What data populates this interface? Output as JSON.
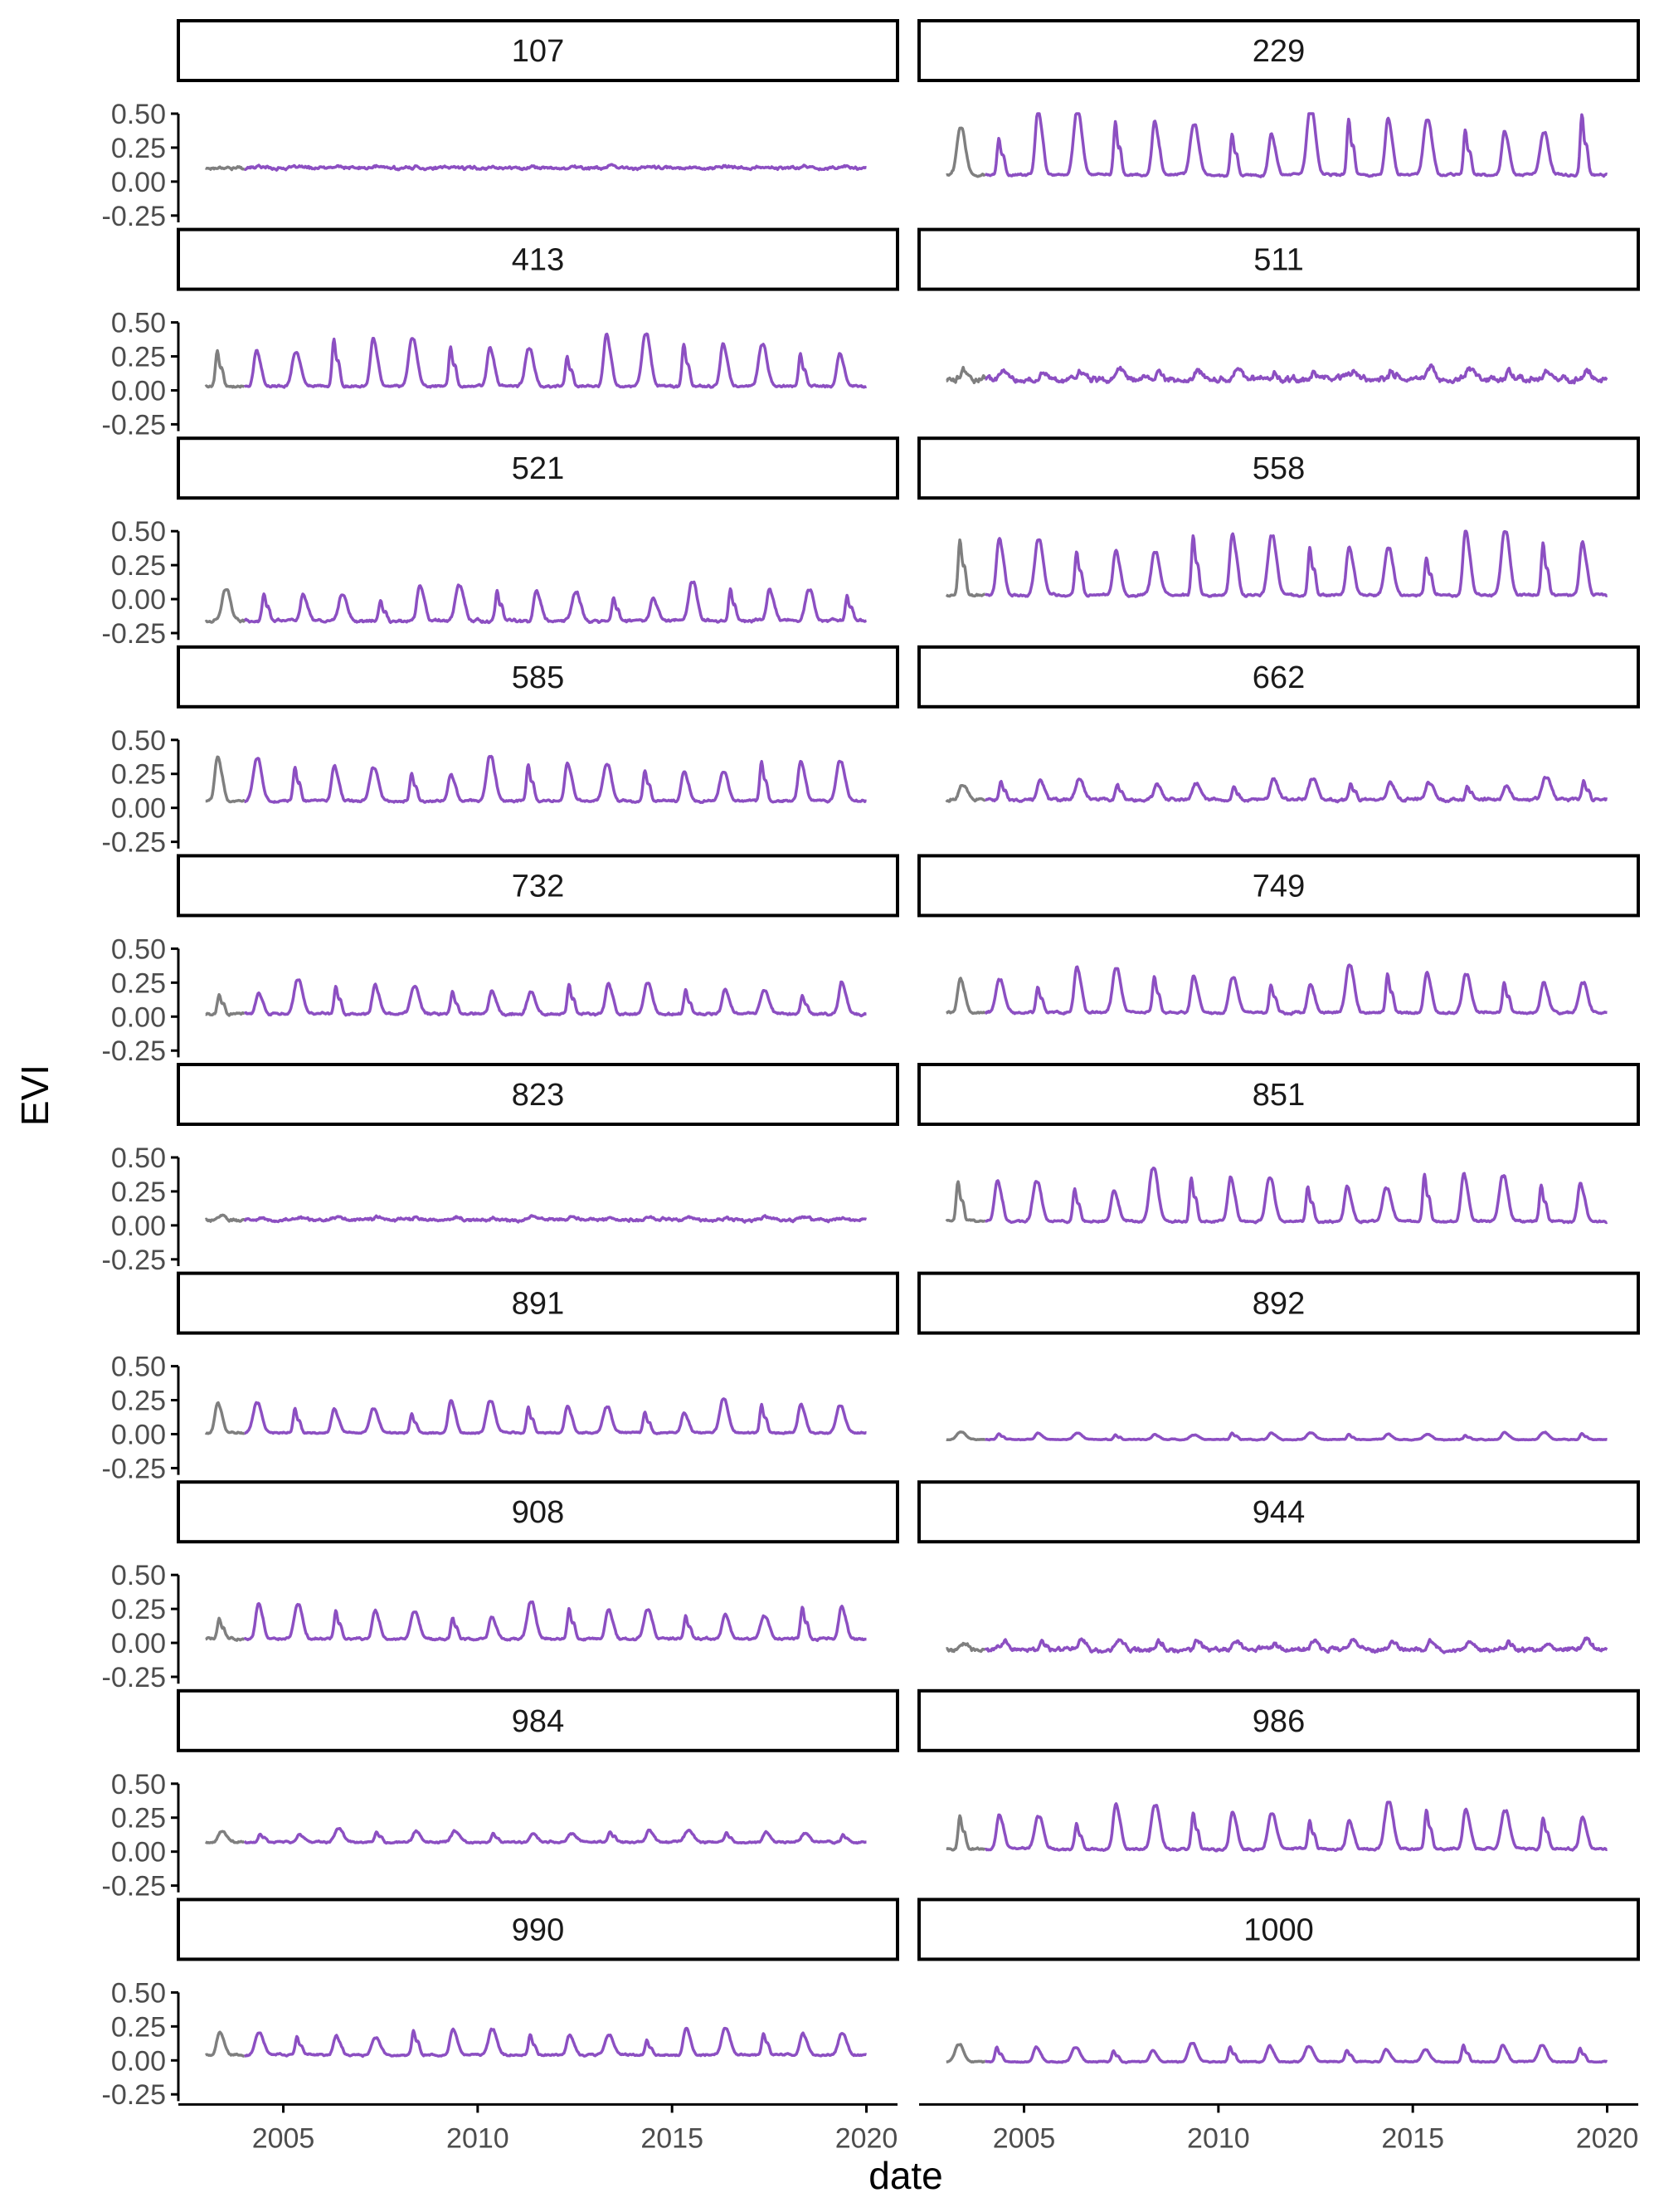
{
  "chart_data": {
    "type": "line",
    "layout": "facet_wrap",
    "ncol": 2,
    "xlabel": "date",
    "ylabel": "EVI",
    "x_ticks": [
      "2005",
      "2010",
      "2015",
      "2020"
    ],
    "xlim": [
      2002.3,
      2020.8
    ],
    "y_ticks": [
      0.5,
      0.25,
      0.0,
      -0.25
    ],
    "y_tick_labels": [
      "0.50",
      "0.25",
      "0.00",
      "-0.25"
    ],
    "ylim": [
      -0.3,
      0.5
    ],
    "colors": {
      "history": "#7f7f7f",
      "series": "#8c4fc2",
      "axis": "#000000",
      "strip_border": "#000000"
    },
    "history_end": 2004.0,
    "series_end": 2020.0,
    "panels": [
      {
        "label": "107",
        "profile": {
          "base": 0.1,
          "amp": 0.01,
          "noise": 0.02,
          "phase": 0.4,
          "trend": 0.0
        }
      },
      {
        "label": "229",
        "profile": {
          "base": 0.05,
          "amp": 0.36,
          "noise": 0.015,
          "phase": 0.35,
          "trend": 0.0
        }
      },
      {
        "label": "413",
        "profile": {
          "base": 0.03,
          "amp": 0.29,
          "noise": 0.015,
          "phase": 0.3,
          "trend": 0.0
        }
      },
      {
        "label": "511",
        "profile": {
          "base": 0.08,
          "amp": 0.06,
          "noise": 0.04,
          "phase": 0.45,
          "trend": 0.0
        }
      },
      {
        "label": "521",
        "profile": {
          "base": -0.16,
          "amp": 0.2,
          "noise": 0.02,
          "phase": 0.5,
          "trend": 0.0
        }
      },
      {
        "label": "558",
        "profile": {
          "base": 0.03,
          "amp": 0.36,
          "noise": 0.015,
          "phase": 0.35,
          "trend": 0.0
        }
      },
      {
        "label": "585",
        "profile": {
          "base": 0.05,
          "amp": 0.24,
          "noise": 0.015,
          "phase": 0.3,
          "trend": 0.0
        }
      },
      {
        "label": "662",
        "profile": {
          "base": 0.06,
          "amp": 0.12,
          "noise": 0.02,
          "phase": 0.4,
          "trend": 0.0
        }
      },
      {
        "label": "732",
        "profile": {
          "base": 0.02,
          "amp": 0.18,
          "noise": 0.015,
          "phase": 0.35,
          "trend": 0.0
        }
      },
      {
        "label": "749",
        "profile": {
          "base": 0.03,
          "amp": 0.25,
          "noise": 0.015,
          "phase": 0.35,
          "trend": 0.0
        }
      },
      {
        "label": "823",
        "profile": {
          "base": 0.04,
          "amp": 0.02,
          "noise": 0.02,
          "phase": 0.4,
          "trend": 0.0
        }
      },
      {
        "label": "851",
        "profile": {
          "base": 0.03,
          "amp": 0.28,
          "noise": 0.015,
          "phase": 0.3,
          "trend": 0.0
        }
      },
      {
        "label": "891",
        "profile": {
          "base": 0.01,
          "amp": 0.18,
          "noise": 0.01,
          "phase": 0.3,
          "trend": 0.0
        }
      },
      {
        "label": "892",
        "profile": {
          "base": -0.04,
          "amp": 0.04,
          "noise": 0.006,
          "phase": 0.35,
          "trend": 0.0
        }
      },
      {
        "label": "908",
        "profile": {
          "base": 0.03,
          "amp": 0.19,
          "noise": 0.015,
          "phase": 0.35,
          "trend": 0.0
        }
      },
      {
        "label": "944",
        "profile": {
          "base": -0.05,
          "amp": 0.06,
          "noise": 0.03,
          "phase": 0.45,
          "trend": 0.0
        }
      },
      {
        "label": "984",
        "profile": {
          "base": 0.07,
          "amp": 0.07,
          "noise": 0.012,
          "phase": 0.4,
          "trend": 0.0
        }
      },
      {
        "label": "986",
        "profile": {
          "base": 0.02,
          "amp": 0.25,
          "noise": 0.015,
          "phase": 0.35,
          "trend": 0.0
        }
      },
      {
        "label": "990",
        "profile": {
          "base": 0.04,
          "amp": 0.15,
          "noise": 0.012,
          "phase": 0.35,
          "trend": 0.0
        }
      },
      {
        "label": "1000",
        "profile": {
          "base": -0.01,
          "amp": 0.1,
          "noise": 0.008,
          "phase": 0.3,
          "trend": 0.0
        }
      }
    ]
  }
}
